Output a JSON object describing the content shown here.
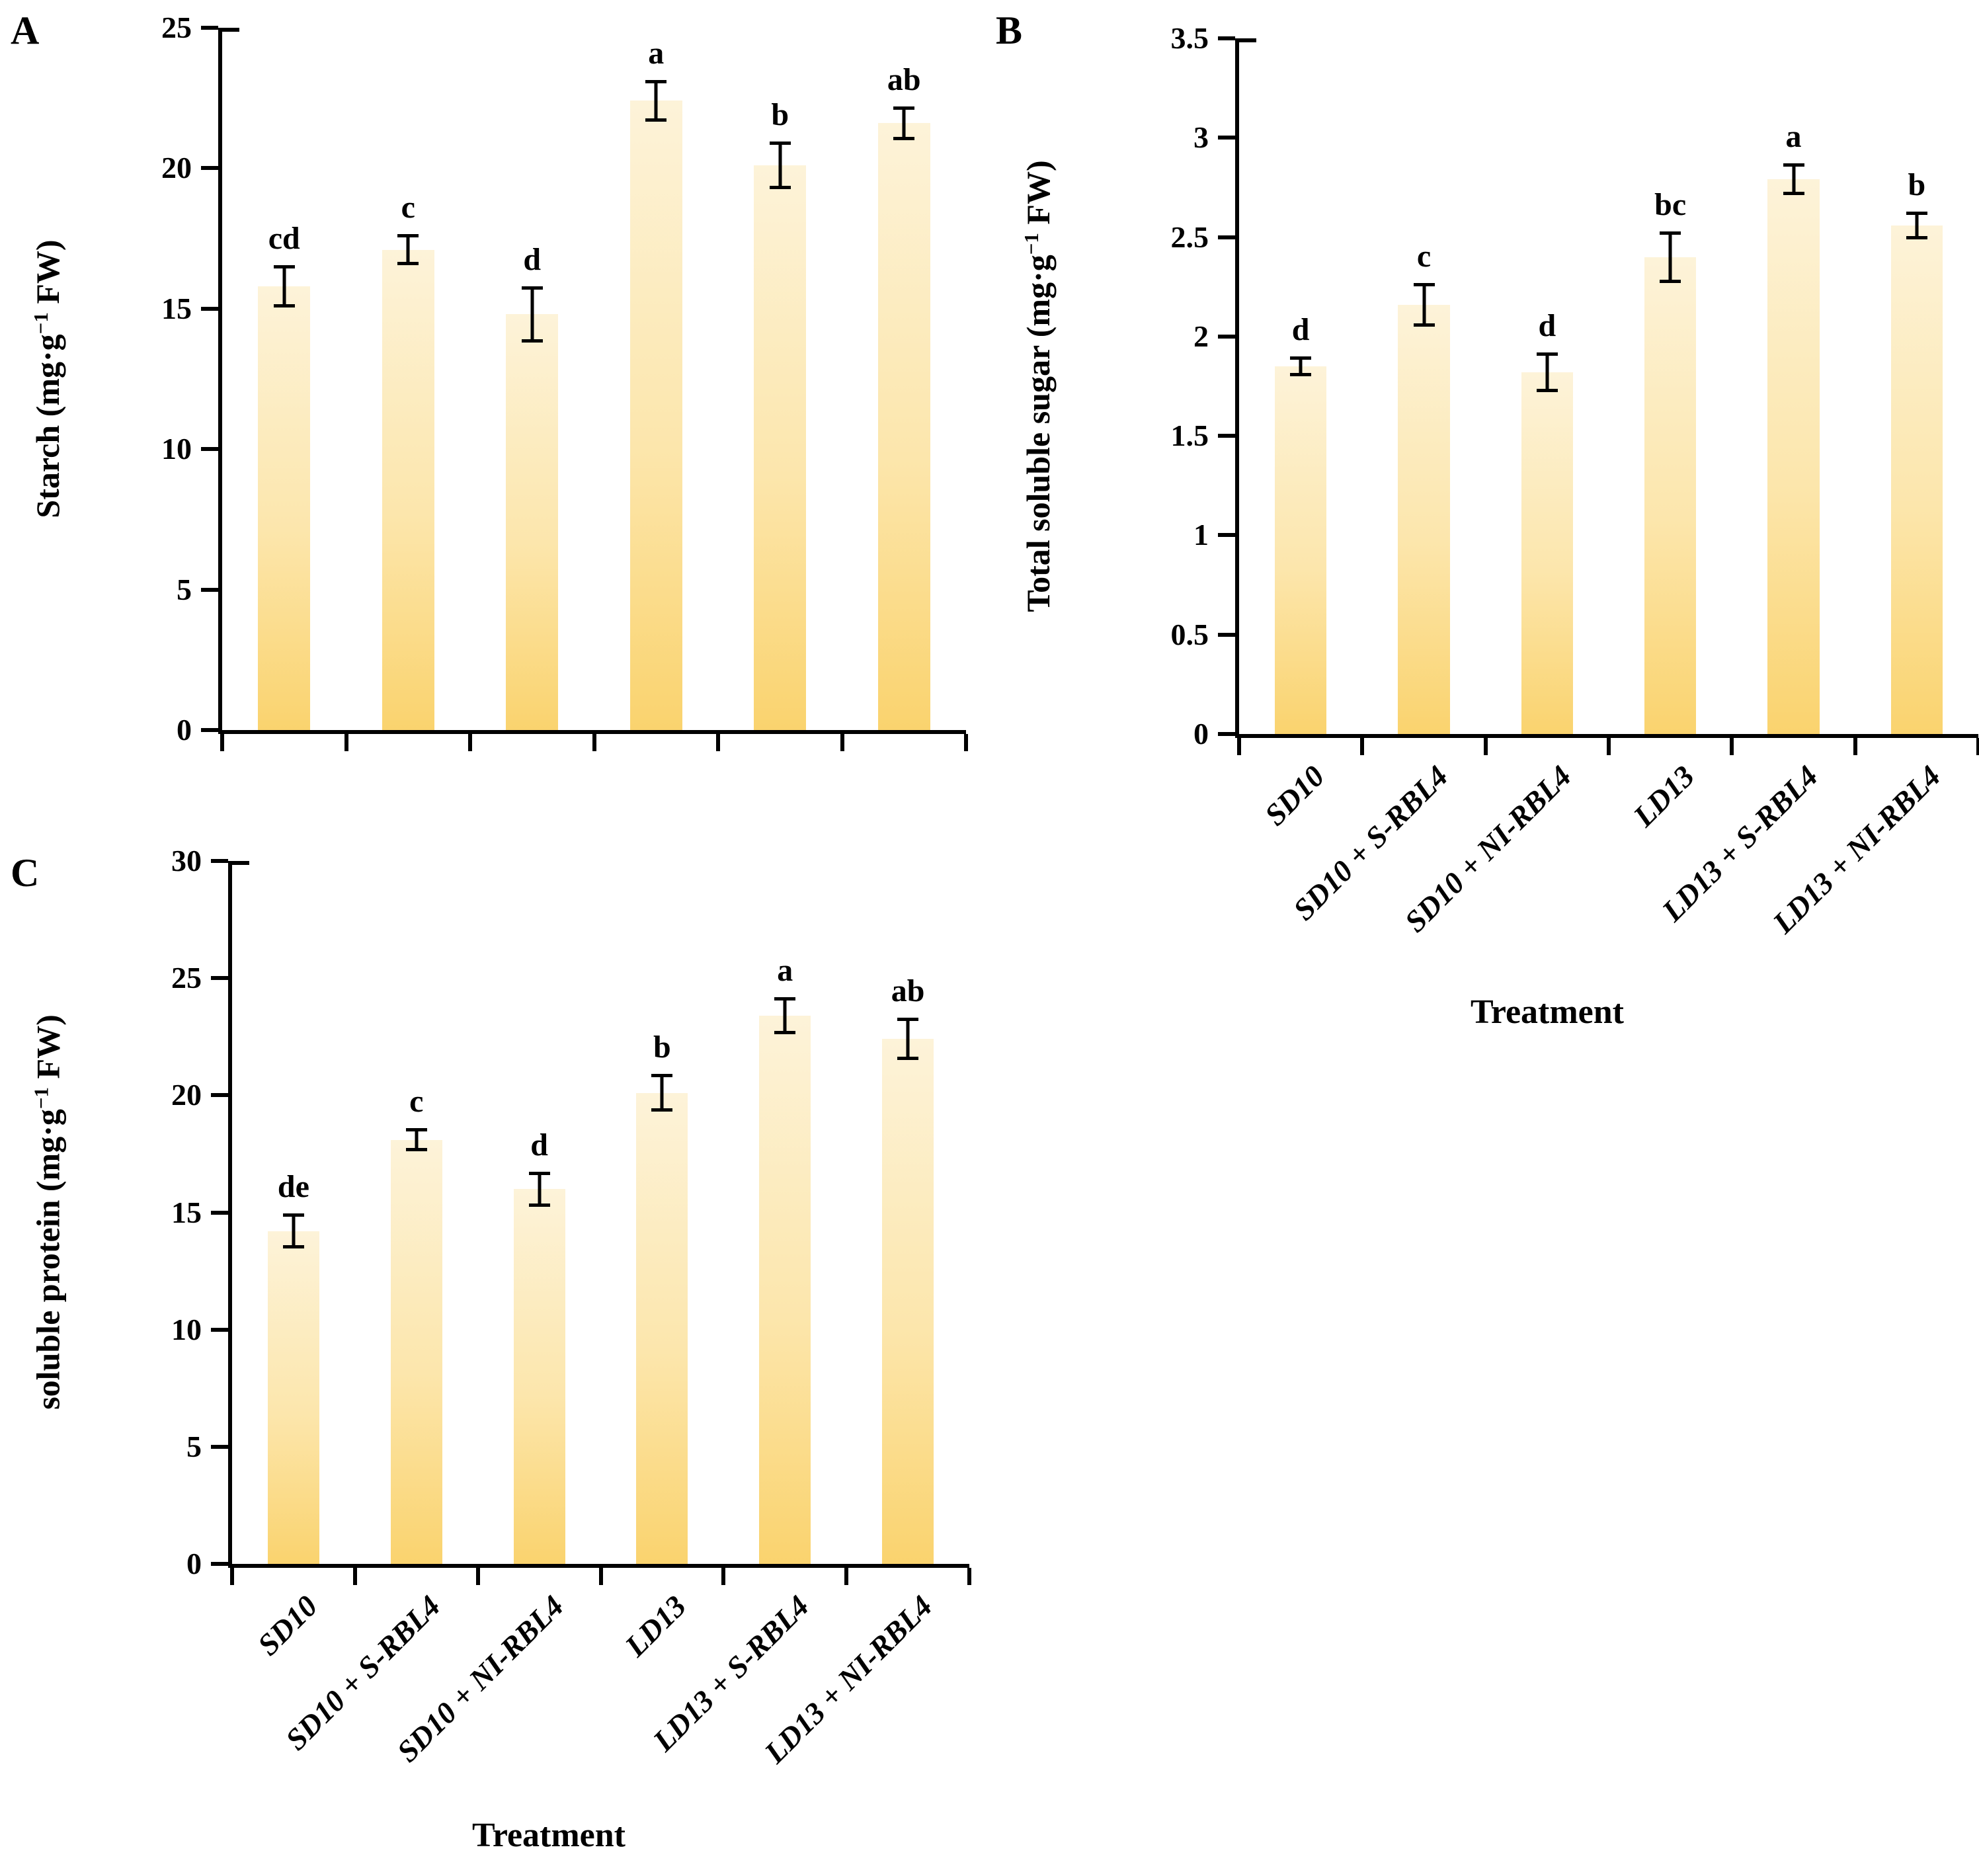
{
  "figure": {
    "background": "#ffffff",
    "axis_color": "#000000",
    "bar_gradient_top": "#FDF3D9",
    "bar_gradient_mid": "#FCE6AC",
    "bar_gradient_bottom": "#FAD36E",
    "xlabel": "Treatment"
  },
  "categories": [
    "SD10",
    "SD10 + S-RBL4",
    "SD10 + NI-RBL4",
    "LD13",
    "LD13 + S-RBL4",
    "LD13 + NI-RBL4"
  ],
  "chart_data": [
    {
      "panel": "A",
      "type": "bar",
      "ylabel_main": "Starch (mg·g",
      "ylabel_sup": "−1",
      "ylabel_tail": " FW)",
      "ylim": [
        0,
        25
      ],
      "yticks": [
        "0",
        "5",
        "10",
        "15",
        "20",
        "25"
      ],
      "categories": [
        "SD10",
        "SD10 + S-RBL4",
        "SD10 + NI-RBL4",
        "LD13",
        "LD13 + S-RBL4",
        "LD13 + NI-RBL4"
      ],
      "values": [
        15.8,
        17.1,
        14.8,
        22.4,
        20.1,
        21.6
      ],
      "errors": [
        0.75,
        0.55,
        1.0,
        0.75,
        0.85,
        0.6
      ],
      "sig_letters": [
        "cd",
        "c",
        "d",
        "a",
        "b",
        "ab"
      ],
      "x_tick_labels_visible": false,
      "xlabel": "",
      "grid": "off",
      "legend": "none"
    },
    {
      "panel": "B",
      "type": "bar",
      "ylabel_main": "Total soluble sugar (mg·g",
      "ylabel_sup": "−1",
      "ylabel_tail": " FW)",
      "ylim": [
        0,
        3.5
      ],
      "yticks": [
        "0",
        "0.5",
        "1",
        "1.5",
        "2",
        "2.5",
        "3",
        "3.5"
      ],
      "categories": [
        "SD10",
        "SD10 + S-RBL4",
        "SD10 + NI-RBL4",
        "LD13",
        "LD13 + S-RBL4",
        "LD13 + NI-RBL4"
      ],
      "values": [
        1.85,
        2.16,
        1.82,
        2.4,
        2.79,
        2.56
      ],
      "errors": [
        0.05,
        0.11,
        0.1,
        0.13,
        0.08,
        0.07
      ],
      "sig_letters": [
        "d",
        "c",
        "d",
        "bc",
        "a",
        "b"
      ],
      "x_tick_labels_visible": true,
      "xlabel": "Treatment",
      "grid": "off",
      "legend": "none"
    },
    {
      "panel": "C",
      "type": "bar",
      "ylabel_main": "soluble protein (mg·g",
      "ylabel_sup": "−1",
      "ylabel_tail": " FW)",
      "ylim": [
        0,
        30
      ],
      "yticks": [
        "0",
        "5",
        "10",
        "15",
        "20",
        "25",
        "30"
      ],
      "categories": [
        "SD10",
        "SD10 + S-RBL4",
        "SD10 + NI-RBL4",
        "LD13",
        "LD13 + S-RBL4",
        "LD13 + NI-RBL4"
      ],
      "values": [
        14.2,
        18.1,
        16.0,
        20.1,
        23.4,
        22.4
      ],
      "errors": [
        0.75,
        0.5,
        0.75,
        0.8,
        0.8,
        0.9
      ],
      "sig_letters": [
        "de",
        "c",
        "d",
        "b",
        "a",
        "ab"
      ],
      "x_tick_labels_visible": true,
      "xlabel": "Treatment",
      "grid": "off",
      "legend": "none"
    }
  ]
}
